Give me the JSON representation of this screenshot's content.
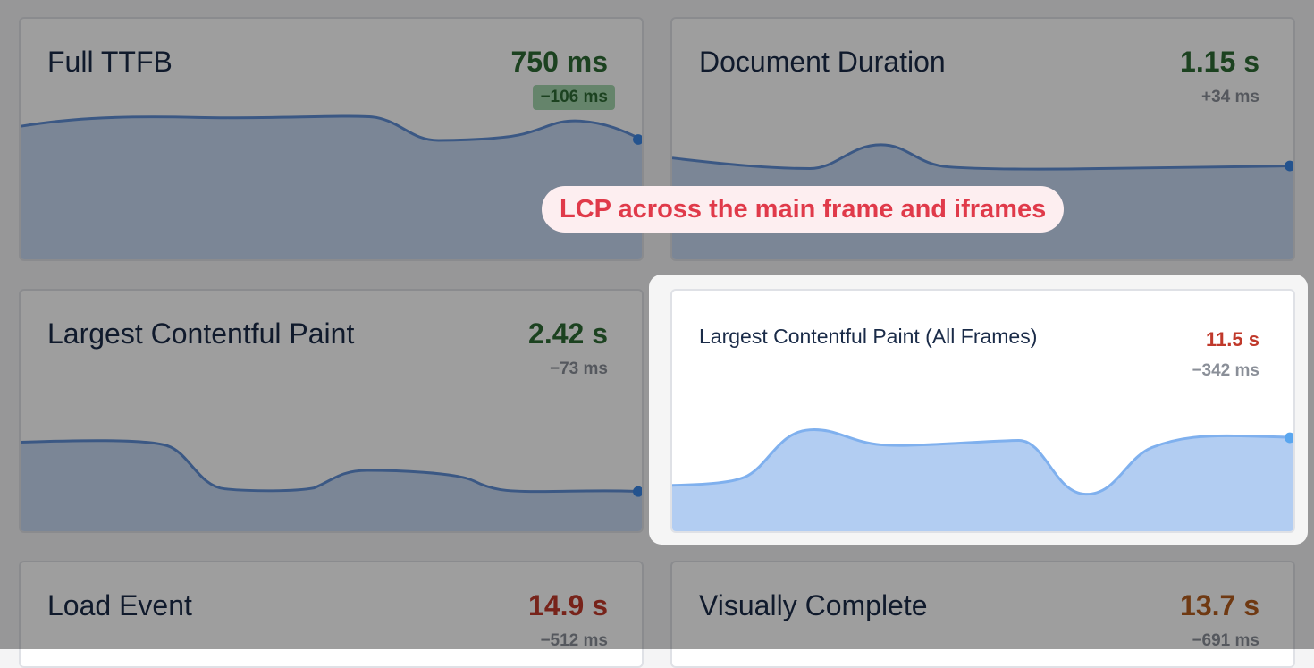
{
  "colors": {
    "good": "#2e6b35",
    "poor": "#c0392b",
    "needs_improvement": "#b35c1e",
    "neutral_delta": "#8a8f98",
    "callout_text": "#e03a4a",
    "callout_bg": "#fdeef0"
  },
  "callout": {
    "text": "LCP across the main frame and iframes"
  },
  "cards": [
    {
      "title": "Full TTFB",
      "value": "750 ms",
      "value_status": "good",
      "delta": "−106 ms",
      "delta_highlighted": true
    },
    {
      "title": "Document Duration",
      "value": "1.15 s",
      "value_status": "good",
      "delta": "+34 ms",
      "delta_highlighted": false
    },
    {
      "title": "Largest Contentful Paint",
      "value": "2.42 s",
      "value_status": "good",
      "delta": "−73 ms",
      "delta_highlighted": false
    },
    {
      "title": "Largest Contentful Paint (All Frames)",
      "value": "11.5 s",
      "value_status": "poor",
      "delta": "−342 ms",
      "delta_highlighted": false,
      "highlighted": true
    },
    {
      "title": "Load Event",
      "value": "14.9 s",
      "value_status": "poor",
      "delta": "−512 ms",
      "delta_highlighted": false
    },
    {
      "title": "Visually Complete",
      "value": "13.7 s",
      "value_status": "needs_improvement",
      "delta": "−691 ms",
      "delta_highlighted": false
    }
  ]
}
